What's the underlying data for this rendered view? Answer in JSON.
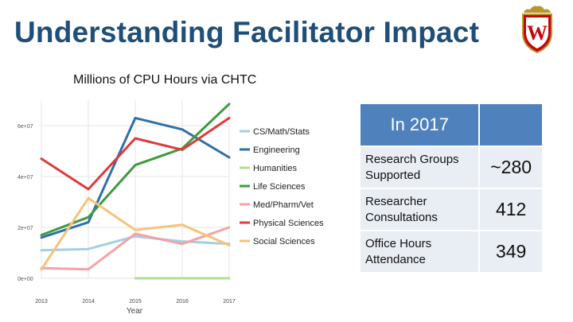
{
  "slide": {
    "title": "Understanding Facilitator Impact",
    "chart_caption": "Millions of CPU Hours via CHTC"
  },
  "logo": {
    "letter": "W",
    "icon": "university-crest-icon",
    "color": "#c5050c"
  },
  "stats_table": {
    "header": "In 2017",
    "rows": [
      {
        "label": "Research Groups Supported",
        "value": "~280"
      },
      {
        "label": "Researcher Consultations",
        "value": "412"
      },
      {
        "label": "Office Hours Attendance",
        "value": "349"
      }
    ],
    "header_color": "#4f81bd",
    "cell_color": "#e9edf4"
  },
  "chart_data": {
    "type": "line",
    "x": [
      2013,
      2014,
      2015,
      2016,
      2017
    ],
    "x_tick_labels": [
      "2013",
      "2014",
      "2015",
      "2016",
      "2017"
    ],
    "xlabel": "Year",
    "ylabel": "",
    "ylim": [
      0,
      70000000
    ],
    "y_ticks": [
      0,
      20000000,
      40000000,
      60000000
    ],
    "y_tick_labels": [
      "0e+00",
      "2e+07",
      "4e+07",
      "6e+07"
    ],
    "grid": true,
    "legend_position": "right",
    "series": [
      {
        "name": "CS/Math/Stats",
        "color": "#a6cee3",
        "values": [
          11000000,
          11500000,
          16500000,
          14500000,
          13500000
        ]
      },
      {
        "name": "Engineering",
        "color": "#2f6fa8",
        "values": [
          16000000,
          22000000,
          63000000,
          58500000,
          47500000
        ]
      },
      {
        "name": "Humanities",
        "color": "#b2df8a",
        "values": [
          null,
          null,
          0,
          0,
          0
        ]
      },
      {
        "name": "Life Sciences",
        "color": "#3e9b3e",
        "values": [
          17000000,
          24000000,
          44500000,
          51000000,
          68500000
        ]
      },
      {
        "name": "Med/Pharm/Vet",
        "color": "#f4a3a3",
        "values": [
          4000000,
          3500000,
          17500000,
          13500000,
          20000000
        ]
      },
      {
        "name": "Physical Sciences",
        "color": "#e03a3a",
        "values": [
          47000000,
          35000000,
          55000000,
          50500000,
          63000000
        ]
      },
      {
        "name": "Social Sciences",
        "color": "#f7c27a",
        "values": [
          3500000,
          31500000,
          19000000,
          21000000,
          13000000
        ]
      }
    ]
  }
}
